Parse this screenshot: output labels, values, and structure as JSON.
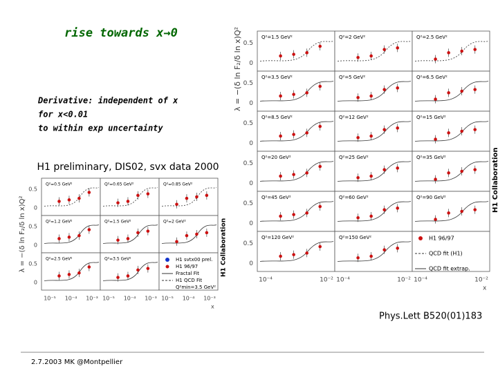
{
  "title": "rise towards x→0",
  "notes": [
    "Derivative: independent of x",
    "for x<0.01",
    "to within exp uncertainty"
  ],
  "small_plot": {
    "caption": "H1 preliminary, DIS02, svx data 2000",
    "y_label": "λ = −(δ ln F₂/δ ln x)Q²",
    "collaboration": "H1 Collaboration",
    "panels": [
      "Q²=0.5 GeV²",
      "Q²=0.65 GeV²",
      "Q²=0.85 GeV²",
      "Q²=1.2 GeV²",
      "Q²=1.5 GeV²",
      "Q²=2 GeV²",
      "Q²=2.5 GeV²",
      "Q²=3.5 GeV²"
    ],
    "legend": [
      "H1 svtx00 prel.",
      "H1 96/97",
      "Fractal Fit",
      "H1 QCD Fit",
      "Q²min=3.5 GeV²"
    ],
    "yticks": [
      "0.5",
      "0"
    ],
    "xticks": [
      "10⁻⁵",
      "10⁻⁴",
      "10⁻³"
    ],
    "x_label": "x"
  },
  "big_plot": {
    "y_label": "λ = −(δ ln F₂/δ ln x)Q²",
    "collaboration": "H1 Collaboration",
    "panels": [
      "Q²=1.5 GeV²",
      "Q²=2 GeV²",
      "Q²=2.5 GeV²",
      "Q²=3.5 GeV²",
      "Q²=5 GeV²",
      "Q²=6.5 GeV²",
      "Q²=8.5 GeV²",
      "Q²=12 GeV²",
      "Q²=15 GeV²",
      "Q²=20 GeV²",
      "Q²=25 GeV²",
      "Q²=35 GeV²",
      "Q²=45 GeV²",
      "Q²=60 GeV²",
      "Q²=90 GeV²",
      "Q²=120 GeV²",
      "Q²=150 GeV²"
    ],
    "legend": [
      "H1 96/97",
      "QCD fit (H1)",
      "QCD fit extrap."
    ],
    "yticks": [
      "0.5",
      "0"
    ],
    "xticks": [
      "10⁻⁴",
      "10⁻²"
    ],
    "x_label": "x"
  },
  "citation": "Phys.Lett B520(01)183",
  "footer": "2.7.2003 MK @Montpellier"
}
